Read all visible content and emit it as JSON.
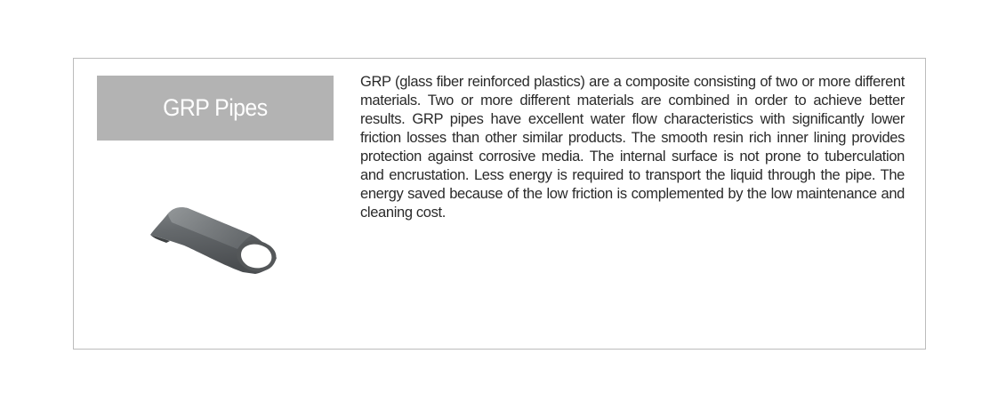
{
  "section": {
    "title": "GRP Pipes",
    "description": "GRP (glass fiber reinforced plastics) are a composite consisting of two or more different materials. Two or more different materials are combined in order to achieve better results. GRP pipes have excellent water flow characteristics with significantly lower friction losses than other similar products. The smooth resin rich inner lining provides protection against corrosive media. The internal surface is not prone to tuberculation and encrustation. Less energy is required to transport the liquid through the pipe. The energy saved because of the low friction is complemented by the low maintenance and cleaning cost.",
    "image_icon": "grp-pipe-icon",
    "colors": {
      "title_bg": "#b3b3b3",
      "title_text": "#ffffff",
      "border": "#bcbcbc",
      "body_text": "#2a2a2a"
    }
  }
}
